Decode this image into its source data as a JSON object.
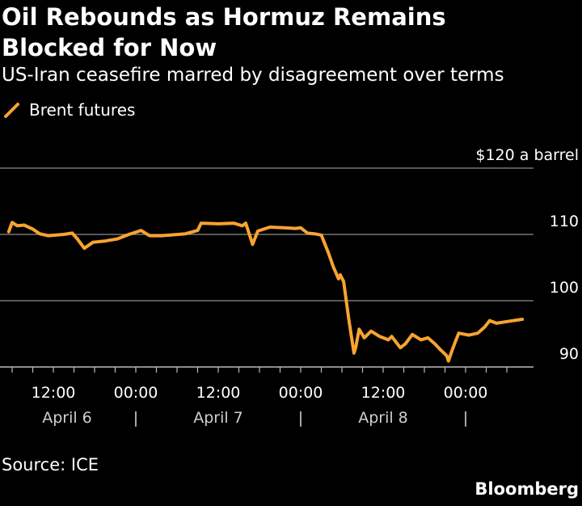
{
  "header": {
    "title_line1": "Oil Rebounds as Hormuz Remains",
    "title_line2": "Blocked for Now",
    "subtitle": "US-Iran ceasefire marred by disagreement over terms"
  },
  "footer": {
    "source": "Source: ICE",
    "logo": "Bloomberg"
  },
  "colors": {
    "background": "#000000",
    "line": "#f9a331",
    "grid": "#8c8c8c",
    "text": "#ffffff"
  },
  "chart_data": {
    "type": "line",
    "title": "Oil Rebounds as Hormuz Remains Blocked for Now",
    "subtitle": "US-Iran ceasefire marred by disagreement over terms",
    "ylabel": "$120 a barrel",
    "ylim": [
      90,
      120
    ],
    "yticks": [
      {
        "value": 120,
        "label": "$120 a barrel"
      },
      {
        "value": 110,
        "label": "110"
      },
      {
        "value": 100,
        "label": "100"
      },
      {
        "value": 90,
        "label": "90"
      }
    ],
    "grid": true,
    "legend": {
      "position": "top-left",
      "entries": [
        "Brent futures"
      ]
    },
    "xticks": [
      {
        "time": "04-06 12:00",
        "label": "12:00"
      },
      {
        "time": "04-07 00:00",
        "label": "00:00"
      },
      {
        "time": "04-07 12:00",
        "label": "12:00"
      },
      {
        "time": "04-08 00:00",
        "label": "00:00"
      },
      {
        "time": "04-08 12:00",
        "label": "12:00"
      },
      {
        "time": "04-09 00:00",
        "label": "00:00"
      }
    ],
    "date_labels": [
      {
        "time": "04-06 14:00",
        "label": "April 6"
      },
      {
        "time": "04-07 00:00",
        "label": "|"
      },
      {
        "time": "04-07 12:00",
        "label": "April 7"
      },
      {
        "time": "04-08 00:00",
        "label": "|"
      },
      {
        "time": "04-08 12:00",
        "label": "April 8"
      },
      {
        "time": "04-09 00:00",
        "label": "|"
      }
    ],
    "series": [
      {
        "name": "Brent futures",
        "points": [
          [
            "04-06 05:30",
            110.4
          ],
          [
            "04-06 06:00",
            111.8
          ],
          [
            "04-06 06:45",
            111.3
          ],
          [
            "04-06 07:45",
            111.4
          ],
          [
            "04-06 09:00",
            110.8
          ],
          [
            "04-06 10:00",
            110.1
          ],
          [
            "04-06 11:15",
            109.8
          ],
          [
            "04-06 13:30",
            110.0
          ],
          [
            "04-06 14:45",
            110.2
          ],
          [
            "04-06 15:30",
            109.3
          ],
          [
            "04-06 16:30",
            107.9
          ],
          [
            "04-06 17:45",
            108.8
          ],
          [
            "04-06 19:30",
            109.0
          ],
          [
            "04-06 21:15",
            109.3
          ],
          [
            "04-06 23:00",
            110.0
          ],
          [
            "04-07 00:45",
            110.6
          ],
          [
            "04-07 02:00",
            109.8
          ],
          [
            "04-07 03:45",
            109.8
          ],
          [
            "04-07 07:15",
            110.1
          ],
          [
            "04-07 09:00",
            110.6
          ],
          [
            "04-07 09:30",
            111.7
          ],
          [
            "04-07 12:00",
            111.6
          ],
          [
            "04-07 14:15",
            111.7
          ],
          [
            "04-07 15:30",
            111.3
          ],
          [
            "04-07 16:00",
            111.7
          ],
          [
            "04-07 17:00",
            108.5
          ],
          [
            "04-07 17:45",
            110.5
          ],
          [
            "04-07 19:30",
            111.1
          ],
          [
            "04-07 21:30",
            111.0
          ],
          [
            "04-07 23:15",
            110.9
          ],
          [
            "04-08 00:00",
            111.0
          ],
          [
            "04-08 01:00",
            110.2
          ],
          [
            "04-08 02:00",
            110.1
          ],
          [
            "04-08 03:00",
            109.9
          ],
          [
            "04-08 04:00",
            107.3
          ],
          [
            "04-08 04:45",
            105.1
          ],
          [
            "04-08 05:30",
            103.3
          ],
          [
            "04-08 05:45",
            103.9
          ],
          [
            "04-08 06:15",
            102.9
          ],
          [
            "04-08 07:00",
            97.2
          ],
          [
            "04-08 07:45",
            92.1
          ],
          [
            "04-08 08:00",
            92.9
          ],
          [
            "04-08 08:30",
            95.7
          ],
          [
            "04-08 09:15",
            94.4
          ],
          [
            "04-08 10:15",
            95.4
          ],
          [
            "04-08 11:30",
            94.6
          ],
          [
            "04-08 12:45",
            94.1
          ],
          [
            "04-08 13:15",
            94.6
          ],
          [
            "04-08 14:30",
            92.9
          ],
          [
            "04-08 15:15",
            93.5
          ],
          [
            "04-08 16:15",
            94.9
          ],
          [
            "04-08 17:30",
            94.1
          ],
          [
            "04-08 18:30",
            94.4
          ],
          [
            "04-08 19:30",
            93.5
          ],
          [
            "04-08 20:15",
            92.7
          ],
          [
            "04-08 21:15",
            91.7
          ],
          [
            "04-08 21:30",
            90.9
          ],
          [
            "04-08 22:00",
            92.4
          ],
          [
            "04-08 22:30",
            93.8
          ],
          [
            "04-08 23:00",
            95.1
          ],
          [
            "04-09 00:30",
            94.8
          ],
          [
            "04-09 01:45",
            95.1
          ],
          [
            "04-09 02:45",
            96.0
          ],
          [
            "04-09 03:30",
            97.0
          ],
          [
            "04-09 04:30",
            96.6
          ],
          [
            "04-09 05:45",
            96.8
          ],
          [
            "04-09 08:15",
            97.2
          ]
        ]
      }
    ]
  }
}
